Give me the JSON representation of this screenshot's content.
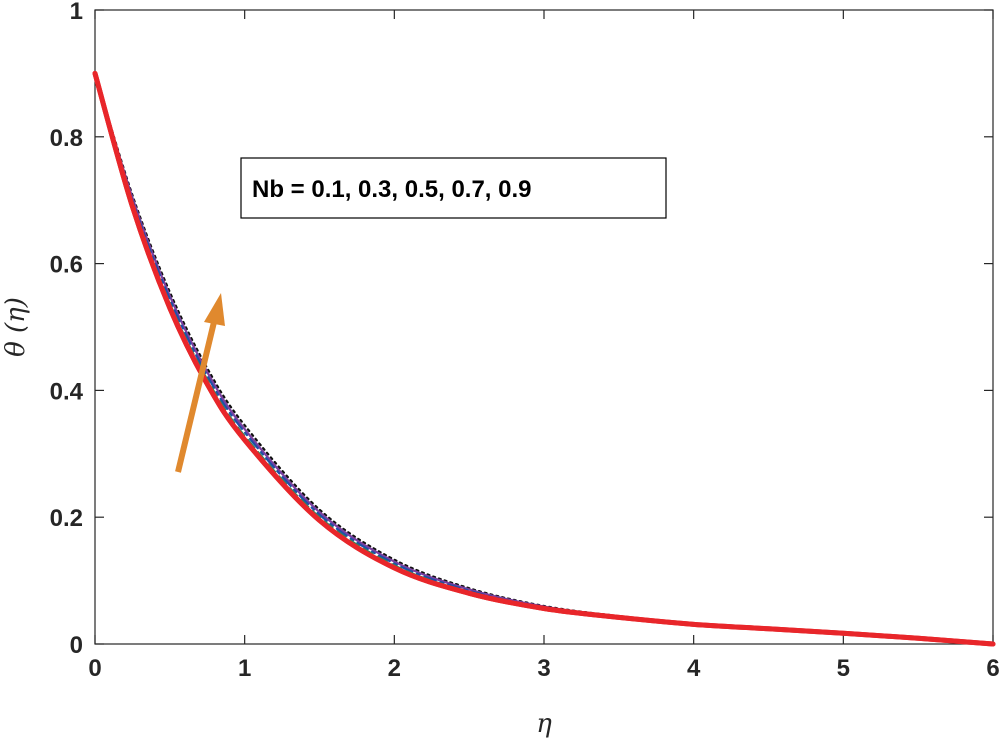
{
  "chart_data": {
    "type": "line",
    "title": "",
    "xlabel": "η",
    "ylabel": "θ (η)",
    "xlim": [
      0,
      6
    ],
    "ylim": [
      0,
      1
    ],
    "xticks": [
      "0",
      "1",
      "2",
      "3",
      "4",
      "5",
      "6"
    ],
    "yticks": [
      "0",
      "0.2",
      "0.4",
      "0.6",
      "0.8",
      "1"
    ],
    "grid": false,
    "annotation": "Nb = 0.1, 0.3, 0.5, 0.7, 0.9",
    "arrow_color": "#e0892e",
    "x": [
      0,
      0.25,
      0.5,
      0.75,
      1,
      1.5,
      2,
      2.5,
      3,
      3.5,
      4,
      4.5,
      5,
      5.5,
      6
    ],
    "series": [
      {
        "color": "#e8262a",
        "dash": "solid",
        "values": [
          0.9,
          0.69,
          0.53,
          0.41,
          0.322,
          0.195,
          0.12,
          0.08,
          0.056,
          0.042,
          0.031,
          0.024,
          0.017,
          0.009,
          0.0
        ]
      },
      {
        "color": "#2e8b57",
        "dash": "dashed",
        "values": [
          0.9,
          0.695,
          0.537,
          0.417,
          0.328,
          0.2,
          0.124,
          0.082,
          0.057,
          0.042,
          0.031,
          0.024,
          0.017,
          0.009,
          0.0
        ]
      },
      {
        "color": "#1f4fa8",
        "dash": "dashdot",
        "values": [
          0.9,
          0.7,
          0.544,
          0.423,
          0.334,
          0.204,
          0.127,
          0.084,
          0.058,
          0.043,
          0.031,
          0.024,
          0.017,
          0.009,
          0.0
        ]
      },
      {
        "color": "#7b3fa0",
        "dash": "solid",
        "values": [
          0.9,
          0.704,
          0.549,
          0.429,
          0.339,
          0.208,
          0.13,
          0.086,
          0.059,
          0.043,
          0.032,
          0.024,
          0.017,
          0.009,
          0.0
        ]
      },
      {
        "color": "#111111",
        "dash": "dotted",
        "values": [
          0.9,
          0.708,
          0.555,
          0.435,
          0.345,
          0.212,
          0.133,
          0.088,
          0.06,
          0.044,
          0.032,
          0.024,
          0.017,
          0.009,
          0.0
        ]
      }
    ]
  }
}
